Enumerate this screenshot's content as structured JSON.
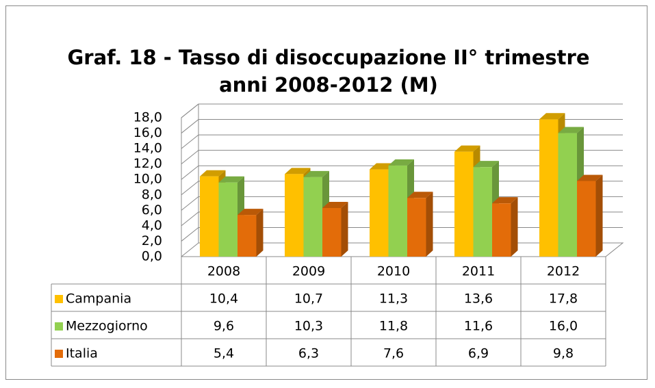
{
  "chart_data": {
    "type": "bar3d",
    "title": "Graf. 18 - Tasso di disoccupazione II° trimestre anni 2008-2012 (M)",
    "categories": [
      "2008",
      "2009",
      "2010",
      "2011",
      "2012"
    ],
    "series": [
      {
        "name": "Campania",
        "color": "#FFC000",
        "values": [
          10.4,
          10.7,
          11.3,
          13.6,
          17.8
        ],
        "value_labels": [
          "10,4",
          "10,7",
          "11,3",
          "13,6",
          "17,8"
        ]
      },
      {
        "name": "Mezzogiorno",
        "color": "#92D050",
        "values": [
          9.6,
          10.3,
          11.8,
          11.6,
          16.0
        ],
        "value_labels": [
          "9,6",
          "10,3",
          "11,8",
          "11,6",
          "16,0"
        ]
      },
      {
        "name": "Italia",
        "color": "#E36C09",
        "values": [
          5.4,
          6.3,
          7.6,
          6.9,
          9.8
        ],
        "value_labels": [
          "5,4",
          "6,3",
          "7,6",
          "6,9",
          "9,8"
        ]
      }
    ],
    "ylim": [
      0,
      18
    ],
    "yticks": [
      {
        "value": 0,
        "label": "0,0"
      },
      {
        "value": 2,
        "label": "2,0"
      },
      {
        "value": 4,
        "label": "4,0"
      },
      {
        "value": 6,
        "label": "6,0"
      },
      {
        "value": 8,
        "label": "8,0"
      },
      {
        "value": 10,
        "label": "10,0"
      },
      {
        "value": 12,
        "label": "12,0"
      },
      {
        "value": 14,
        "label": "14,0"
      },
      {
        "value": 16,
        "label": "16,0"
      },
      {
        "value": 18,
        "label": "18,0"
      }
    ],
    "grid": true
  }
}
